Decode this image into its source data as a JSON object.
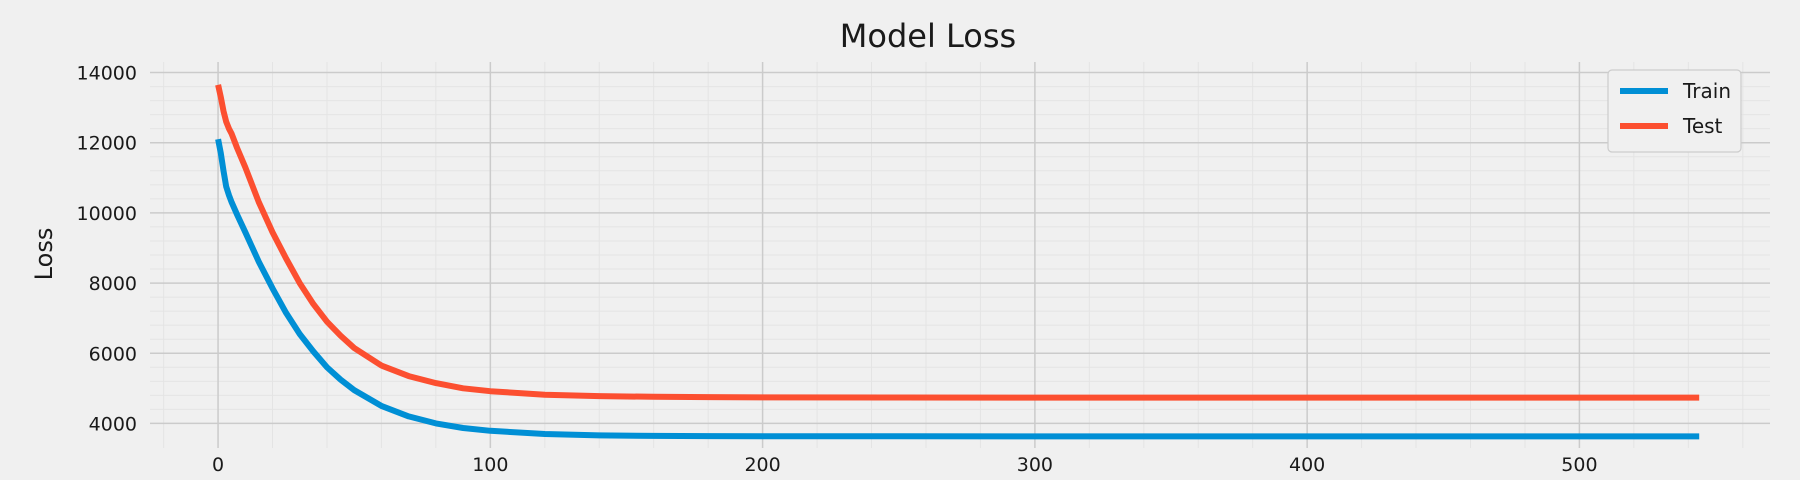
{
  "chart_data": {
    "type": "line",
    "title": "Model Loss",
    "xlabel": "",
    "ylabel": "Loss",
    "xlim": [
      -25,
      570
    ],
    "ylim": [
      3300,
      14300
    ],
    "xticks": [
      0,
      100,
      200,
      300,
      400,
      500
    ],
    "yticks": [
      4000,
      6000,
      8000,
      10000,
      12000,
      14000
    ],
    "grid": true,
    "legend_position": "top-right",
    "series": [
      {
        "name": "Train",
        "color": "#008fd5",
        "x": [
          0,
          1,
          2,
          3,
          4,
          5,
          7,
          10,
          15,
          20,
          25,
          30,
          35,
          40,
          45,
          50,
          60,
          70,
          80,
          90,
          100,
          120,
          140,
          160,
          180,
          200,
          250,
          300,
          350,
          400,
          450,
          500,
          544
        ],
        "y": [
          12100,
          11700,
          11200,
          10750,
          10500,
          10300,
          9950,
          9450,
          8600,
          7850,
          7150,
          6550,
          6050,
          5600,
          5250,
          4950,
          4500,
          4200,
          4000,
          3870,
          3790,
          3700,
          3660,
          3645,
          3638,
          3635,
          3632,
          3630,
          3630,
          3630,
          3630,
          3630,
          3630
        ]
      },
      {
        "name": "Test",
        "color": "#fc4f30",
        "x": [
          0,
          1,
          2,
          3,
          4,
          5,
          7,
          10,
          15,
          20,
          25,
          30,
          35,
          40,
          45,
          50,
          60,
          70,
          80,
          90,
          100,
          120,
          140,
          160,
          180,
          200,
          250,
          300,
          350,
          400,
          450,
          500,
          544
        ],
        "y": [
          13650,
          13300,
          12900,
          12600,
          12400,
          12250,
          11850,
          11300,
          10300,
          9450,
          8700,
          8000,
          7400,
          6900,
          6500,
          6150,
          5650,
          5350,
          5150,
          5000,
          4920,
          4820,
          4780,
          4760,
          4750,
          4742,
          4738,
          4736,
          4735,
          4735,
          4735,
          4735,
          4735
        ]
      }
    ]
  }
}
